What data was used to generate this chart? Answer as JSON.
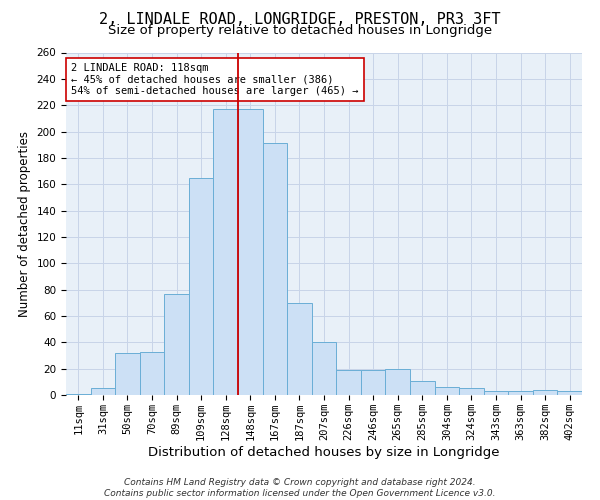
{
  "title": "2, LINDALE ROAD, LONGRIDGE, PRESTON, PR3 3FT",
  "subtitle": "Size of property relative to detached houses in Longridge",
  "xlabel": "Distribution of detached houses by size in Longridge",
  "ylabel": "Number of detached properties",
  "bar_color": "#cce0f5",
  "bar_edge_color": "#6aaed6",
  "plot_bg_color": "#e8f0f8",
  "background_color": "#ffffff",
  "grid_color": "#c8d4e8",
  "categories": [
    "11sqm",
    "31sqm",
    "50sqm",
    "70sqm",
    "89sqm",
    "109sqm",
    "128sqm",
    "148sqm",
    "167sqm",
    "187sqm",
    "207sqm",
    "226sqm",
    "246sqm",
    "265sqm",
    "285sqm",
    "304sqm",
    "324sqm",
    "343sqm",
    "363sqm",
    "382sqm",
    "402sqm"
  ],
  "values": [
    1,
    5,
    32,
    33,
    77,
    165,
    217,
    217,
    191,
    70,
    40,
    19,
    19,
    20,
    11,
    6,
    5,
    3,
    3,
    4,
    3
  ],
  "ylim": [
    0,
    260
  ],
  "yticks": [
    0,
    20,
    40,
    60,
    80,
    100,
    120,
    140,
    160,
    180,
    200,
    220,
    240,
    260
  ],
  "property_line_x": 6.5,
  "property_line_color": "#cc0000",
  "annotation_text": "2 LINDALE ROAD: 118sqm\n← 45% of detached houses are smaller (386)\n54% of semi-detached houses are larger (465) →",
  "annotation_box_color": "#ffffff",
  "annotation_box_edge": "#cc0000",
  "footer_line1": "Contains HM Land Registry data © Crown copyright and database right 2024.",
  "footer_line2": "Contains public sector information licensed under the Open Government Licence v3.0.",
  "title_fontsize": 11,
  "subtitle_fontsize": 9.5,
  "xlabel_fontsize": 9.5,
  "ylabel_fontsize": 8.5,
  "tick_fontsize": 7.5,
  "annotation_fontsize": 7.5,
  "footer_fontsize": 6.5
}
